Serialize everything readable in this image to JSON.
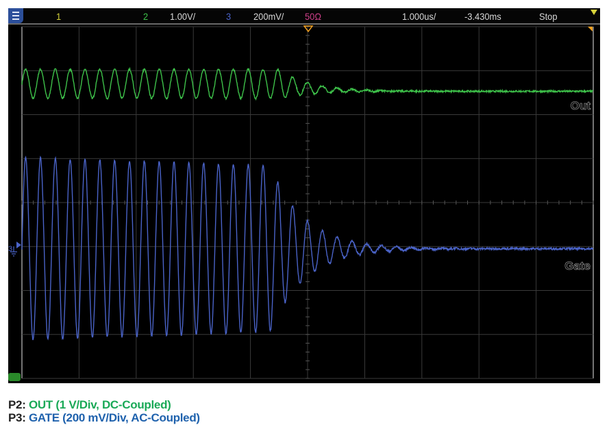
{
  "header": {
    "menu_icon": "menu-icon",
    "ch1_label": "1",
    "ch2_label": "2",
    "ch2_scale": "1.00V/",
    "ch3_label": "3",
    "ch3_scale": "200mV/",
    "ch3_impedance": "50Ω",
    "timebase": "1.000us/",
    "delay": "-3.430ms",
    "run_state": "Stop"
  },
  "colors": {
    "ch1": "#d6d23a",
    "ch2": "#3ec24a",
    "ch3": "#4a63c8",
    "impedance": "#d0408a",
    "trigger": "#f0a020",
    "legend_ch2": "#1aa957",
    "legend_ch3": "#1f62ad"
  },
  "chart_data": {
    "type": "line",
    "title": "",
    "xlabel": "",
    "ylabel": "",
    "x_unit": "us",
    "xlim": [
      -5,
      5
    ],
    "x_divisions": 10,
    "y_divisions": 8,
    "grid": true,
    "trigger_time_us": 0,
    "series": [
      {
        "name": "Out",
        "channel": 2,
        "volts_per_div": 1.0,
        "color": "#3ec24a",
        "center_div": 2.7,
        "settled_div": 2.53,
        "amplitude_V": 0.33,
        "frequency_MHz": 3.85,
        "decay_start_us": -0.5,
        "decay_tau_us": 0.55
      },
      {
        "name": "Gate",
        "channel": 3,
        "volts_per_div": 0.2,
        "color": "#4a63c8",
        "ground_div": -1.0,
        "settled_V": -0.01,
        "amplitude_V": 0.415,
        "frequency_MHz": 3.85,
        "decay_start_us": -0.65,
        "decay_tau_us": 0.6
      }
    ]
  },
  "trace_labels": {
    "ch2": "Out",
    "ch3": "Gate"
  },
  "ground_marker": {
    "label": "3"
  },
  "legend": [
    {
      "key": "P2:",
      "text": "OUT (1 V/Div, DC-Coupled)"
    },
    {
      "key": "P3:",
      "text": "GATE (200 mV/Div, AC-Coupled)"
    }
  ]
}
